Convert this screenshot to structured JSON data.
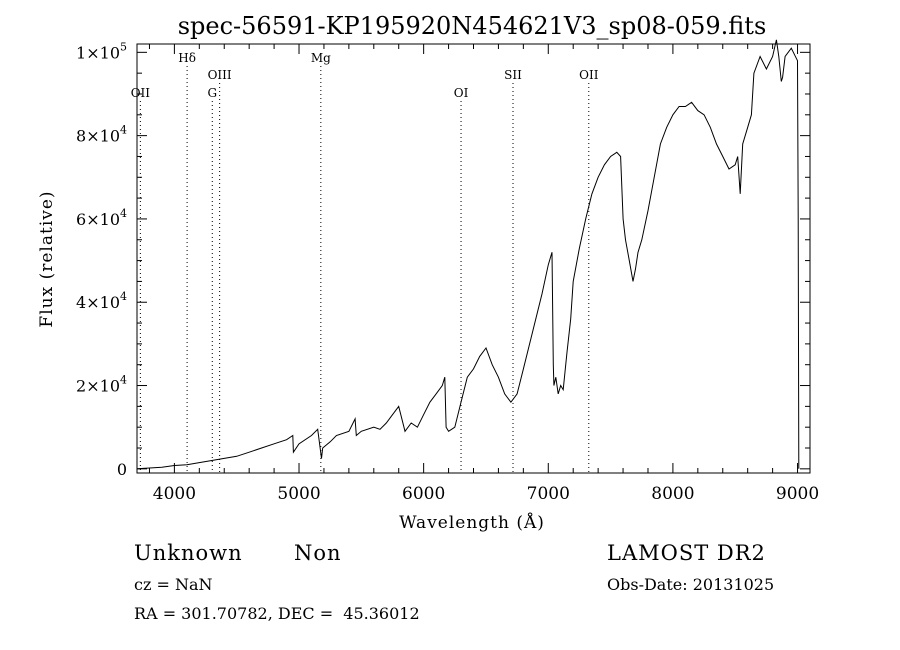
{
  "chart_data": {
    "type": "line",
    "title": "spec-56591-KP195920N454621V3_sp08-059.fits",
    "xlabel": "Wavelength (Å)",
    "ylabel": "Flux (relative)",
    "xlim": [
      3700,
      9100
    ],
    "ylim": [
      -1000,
      102000
    ],
    "x_ticks": [
      4000,
      5000,
      6000,
      7000,
      8000,
      9000
    ],
    "y_ticks": [
      {
        "value": 0,
        "mantissa": "0",
        "exponent": ""
      },
      {
        "value": 20000,
        "mantissa": "2×10",
        "exponent": "4"
      },
      {
        "value": 40000,
        "mantissa": "4×10",
        "exponent": "4"
      },
      {
        "value": 60000,
        "mantissa": "6×10",
        "exponent": "4"
      },
      {
        "value": 80000,
        "mantissa": "8×10",
        "exponent": "4"
      },
      {
        "value": 100000,
        "mantissa": "1×10",
        "exponent": "5"
      }
    ],
    "line_color": "#000000",
    "series": [
      {
        "x": [
          3700,
          3800,
          3900,
          4000,
          4100,
          4200,
          4300,
          4400,
          4500,
          4600,
          4700,
          4800,
          4900,
          4950,
          4955,
          5000,
          5100,
          5150,
          5180,
          5190,
          5250,
          5300,
          5400,
          5450,
          5460,
          5500,
          5600,
          5650,
          5700,
          5750,
          5800,
          5850,
          5900,
          5950,
          6000,
          6050,
          6100,
          6150,
          6170,
          6180,
          6200,
          6250,
          6300,
          6350,
          6400,
          6450,
          6500,
          6550,
          6600,
          6650,
          6700,
          6750,
          6800,
          6850,
          6900,
          6950,
          7000,
          7030,
          7040,
          7045,
          7060,
          7080,
          7100,
          7120,
          7150,
          7180,
          7200,
          7250,
          7300,
          7350,
          7400,
          7450,
          7500,
          7550,
          7580,
          7600,
          7620,
          7650,
          7680,
          7700,
          7720,
          7750,
          7800,
          7850,
          7900,
          7950,
          8000,
          8050,
          8100,
          8150,
          8200,
          8250,
          8300,
          8350,
          8400,
          8450,
          8500,
          8520,
          8540,
          8560,
          8600,
          8630,
          8650,
          8700,
          8750,
          8800,
          8830,
          8850,
          8870,
          8880,
          8900,
          8950,
          9000,
          9005,
          9010
        ],
        "y": [
          0,
          200,
          400,
          800,
          1000,
          1500,
          2000,
          2500,
          3000,
          4000,
          5000,
          6000,
          7000,
          8000,
          4000,
          6000,
          8000,
          9500,
          2500,
          5000,
          6500,
          8000,
          9000,
          12000,
          8000,
          9000,
          10000,
          9500,
          11000,
          13000,
          15000,
          9000,
          11000,
          10000,
          13000,
          16000,
          18000,
          20000,
          22000,
          10000,
          9000,
          10000,
          16000,
          22000,
          24000,
          27000,
          29000,
          25000,
          22000,
          18000,
          16000,
          18000,
          24000,
          30000,
          36000,
          42000,
          49000,
          52000,
          25000,
          20000,
          22000,
          18000,
          20000,
          19000,
          28000,
          36000,
          45000,
          53000,
          60000,
          66000,
          70000,
          73000,
          75000,
          76000,
          75000,
          60000,
          55000,
          50000,
          45000,
          48000,
          52000,
          55000,
          62000,
          70000,
          78000,
          82000,
          85000,
          87000,
          87000,
          88000,
          86000,
          85000,
          82000,
          78000,
          75000,
          72000,
          73000,
          75000,
          66000,
          78000,
          82000,
          85000,
          95000,
          99000,
          96000,
          99000,
          103000,
          99000,
          93000,
          94000,
          99000,
          101000,
          98000,
          60000,
          0
        ]
      }
    ],
    "annotations": [
      {
        "label": "OII",
        "x": 3727,
        "row": 3
      },
      {
        "label": "Hδ",
        "x": 4102,
        "row": 1
      },
      {
        "label": "G",
        "x": 4304,
        "row": 3
      },
      {
        "label": "OIII",
        "x": 4363,
        "row": 2
      },
      {
        "label": "Mg",
        "x": 5175,
        "row": 1
      },
      {
        "label": "OI",
        "x": 6300,
        "row": 3
      },
      {
        "label": "OII",
        "x": 7325,
        "row": 2
      },
      {
        "label": "SII",
        "x": 6717,
        "row": 2
      }
    ]
  },
  "info": {
    "class_label": "Unknown",
    "subclass_label": "Non",
    "survey": "LAMOST DR2",
    "cz_text": "cz = NaN",
    "obs_date_text": "Obs-Date: 20131025",
    "coords_text": "RA = 301.70782, DEC =  45.36012"
  }
}
